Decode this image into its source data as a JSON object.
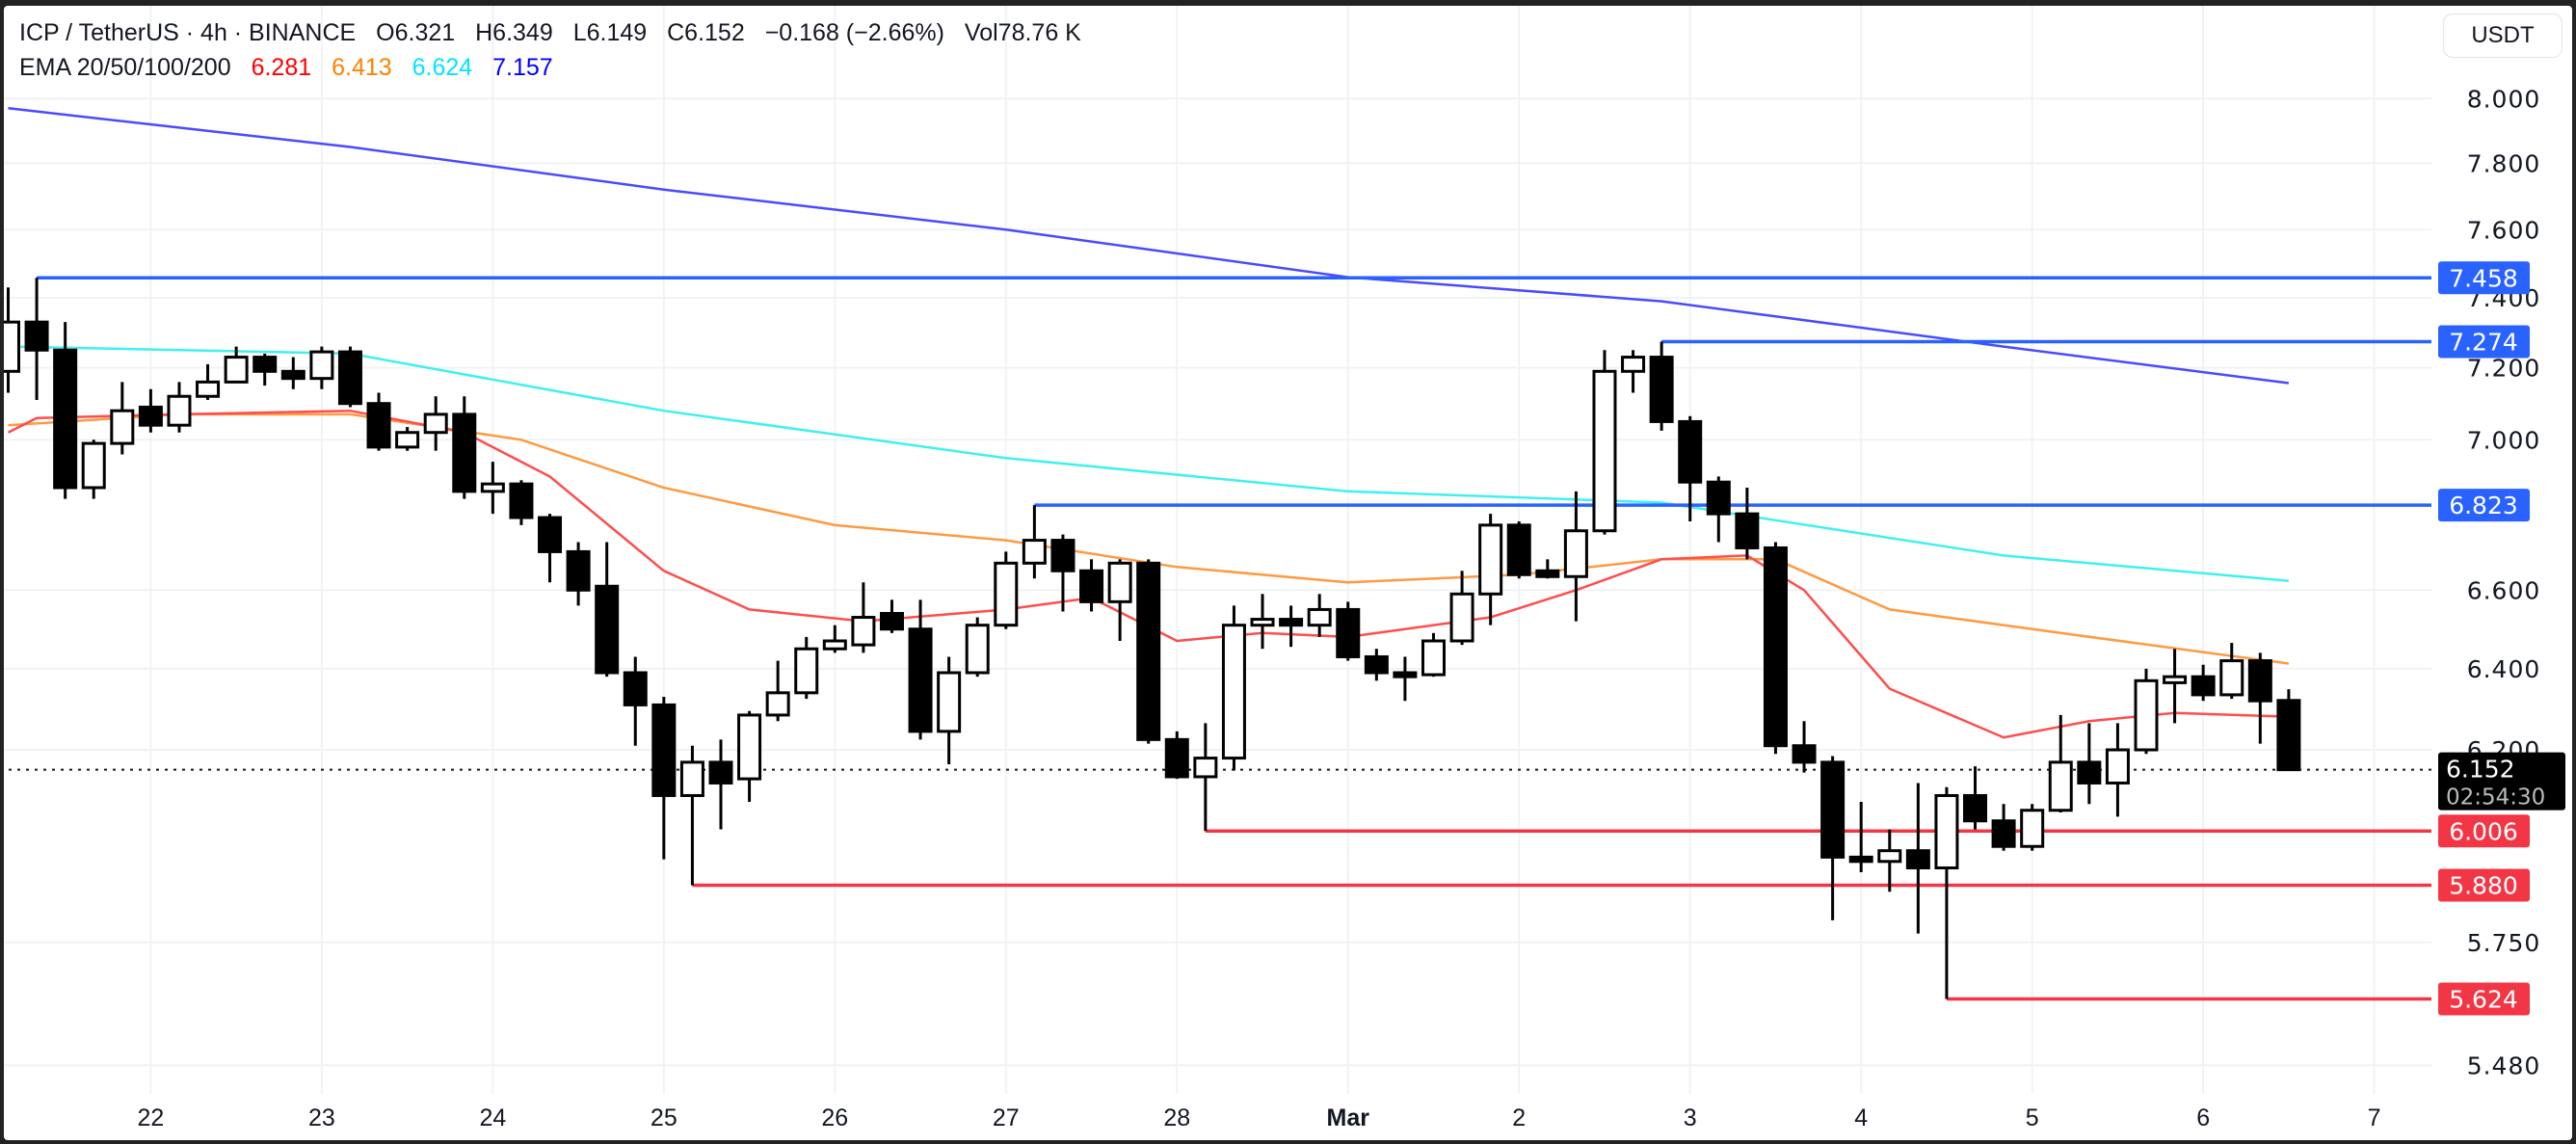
{
  "header": {
    "symbol": "ICP / TetherUS · 4h · BINANCE",
    "open": "O6.321",
    "high": "H6.349",
    "low": "L6.149",
    "close": "C6.152",
    "change": "−0.168 (−2.66%)",
    "volume": "Vol78.76 K",
    "ema_label": "EMA 20/50/100/200",
    "ema_values": [
      "6.281",
      "6.413",
      "6.624",
      "7.157"
    ]
  },
  "currency_button": "USDT",
  "colors": {
    "up": "#ffffff",
    "down": "#000000",
    "ema20": "#ff0000",
    "ema50": "#ff8000",
    "ema100": "#00ffff",
    "ema200": "#0000ff",
    "resistance": "#2962ff",
    "support": "#f23645"
  },
  "chart_data": {
    "type": "candlestick",
    "title": "ICP / TetherUS · 4h · BINANCE",
    "y_scale": "log",
    "ylim": [
      5.44,
      8.1
    ],
    "grid": true,
    "y_ticks": [
      "8.000",
      "7.800",
      "7.600",
      "7.400",
      "7.200",
      "7.000",
      "6.600",
      "6.400",
      "6.200",
      "5.750",
      "5.480"
    ],
    "x_ticks": [
      {
        "label": "22",
        "candle": 5
      },
      {
        "label": "23",
        "candle": 11
      },
      {
        "label": "24",
        "candle": 17
      },
      {
        "label": "25",
        "candle": 23
      },
      {
        "label": "26",
        "candle": 29
      },
      {
        "label": "27",
        "candle": 35
      },
      {
        "label": "28",
        "candle": 41
      },
      {
        "label": "Mar",
        "candle": 47
      },
      {
        "label": "2",
        "candle": 53
      },
      {
        "label": "3",
        "candle": 59
      },
      {
        "label": "4",
        "candle": 65
      },
      {
        "label": "5",
        "candle": 71
      },
      {
        "label": "6",
        "candle": 77
      },
      {
        "label": "7",
        "candle": 83
      }
    ],
    "ohlc": [
      [
        7.19,
        7.43,
        7.13,
        7.33
      ],
      [
        7.33,
        7.458,
        7.11,
        7.25
      ],
      [
        7.25,
        7.33,
        6.84,
        6.87
      ],
      [
        6.87,
        7.0,
        6.84,
        6.99
      ],
      [
        6.99,
        7.16,
        6.96,
        7.08
      ],
      [
        7.09,
        7.14,
        7.02,
        7.04
      ],
      [
        7.04,
        7.16,
        7.02,
        7.12
      ],
      [
        7.12,
        7.21,
        7.11,
        7.16
      ],
      [
        7.16,
        7.26,
        7.16,
        7.23
      ],
      [
        7.23,
        7.24,
        7.15,
        7.19
      ],
      [
        7.19,
        7.23,
        7.14,
        7.17
      ],
      [
        7.17,
        7.26,
        7.14,
        7.245
      ],
      [
        7.245,
        7.26,
        7.09,
        7.1
      ],
      [
        7.1,
        7.13,
        6.97,
        6.98
      ],
      [
        6.98,
        7.035,
        6.97,
        7.02
      ],
      [
        7.02,
        7.12,
        6.97,
        7.07
      ],
      [
        7.07,
        7.12,
        6.84,
        6.86
      ],
      [
        6.86,
        6.94,
        6.8,
        6.88
      ],
      [
        6.88,
        6.89,
        6.77,
        6.79
      ],
      [
        6.79,
        6.8,
        6.62,
        6.7
      ],
      [
        6.7,
        6.725,
        6.56,
        6.6
      ],
      [
        6.61,
        6.725,
        6.38,
        6.39
      ],
      [
        6.39,
        6.43,
        6.21,
        6.31
      ],
      [
        6.31,
        6.33,
        5.94,
        6.09
      ],
      [
        6.09,
        6.21,
        5.88,
        6.17
      ],
      [
        6.17,
        6.225,
        6.01,
        6.12
      ],
      [
        6.13,
        6.295,
        6.075,
        6.285
      ],
      [
        6.285,
        6.42,
        6.27,
        6.34
      ],
      [
        6.34,
        6.48,
        6.325,
        6.45
      ],
      [
        6.45,
        6.51,
        6.44,
        6.47
      ],
      [
        6.46,
        6.62,
        6.44,
        6.53
      ],
      [
        6.54,
        6.575,
        6.49,
        6.5
      ],
      [
        6.5,
        6.575,
        6.225,
        6.245
      ],
      [
        6.245,
        6.43,
        6.165,
        6.39
      ],
      [
        6.39,
        6.53,
        6.38,
        6.51
      ],
      [
        6.51,
        6.7,
        6.5,
        6.67
      ],
      [
        6.67,
        6.823,
        6.63,
        6.73
      ],
      [
        6.73,
        6.745,
        6.545,
        6.65
      ],
      [
        6.65,
        6.68,
        6.545,
        6.57
      ],
      [
        6.57,
        6.68,
        6.47,
        6.67
      ],
      [
        6.67,
        6.68,
        6.215,
        6.225
      ],
      [
        6.225,
        6.245,
        6.13,
        6.135
      ],
      [
        6.135,
        6.265,
        6.006,
        6.18
      ],
      [
        6.18,
        6.56,
        6.15,
        6.51
      ],
      [
        6.51,
        6.59,
        6.45,
        6.525
      ],
      [
        6.525,
        6.56,
        6.455,
        6.51
      ],
      [
        6.51,
        6.59,
        6.48,
        6.55
      ],
      [
        6.55,
        6.57,
        6.42,
        6.43
      ],
      [
        6.43,
        6.45,
        6.37,
        6.39
      ],
      [
        6.39,
        6.43,
        6.32,
        6.38
      ],
      [
        6.385,
        6.49,
        6.38,
        6.47
      ],
      [
        6.47,
        6.65,
        6.46,
        6.59
      ],
      [
        6.59,
        6.8,
        6.51,
        6.77
      ],
      [
        6.77,
        6.78,
        6.63,
        6.64
      ],
      [
        6.65,
        6.68,
        6.63,
        6.635
      ],
      [
        6.635,
        6.86,
        6.52,
        6.755
      ],
      [
        6.755,
        7.25,
        6.745,
        7.19
      ],
      [
        7.19,
        7.25,
        7.13,
        7.23
      ],
      [
        7.23,
        7.274,
        7.025,
        7.05
      ],
      [
        7.05,
        7.065,
        6.78,
        6.885
      ],
      [
        6.885,
        6.9,
        6.725,
        6.8
      ],
      [
        6.8,
        6.87,
        6.68,
        6.71
      ],
      [
        6.71,
        6.725,
        6.19,
        6.21
      ],
      [
        6.21,
        6.27,
        6.145,
        6.17
      ],
      [
        6.17,
        6.185,
        5.8,
        5.945
      ],
      [
        5.945,
        6.075,
        5.91,
        5.935
      ],
      [
        5.935,
        6.01,
        5.865,
        5.96
      ],
      [
        5.96,
        6.12,
        5.77,
        5.92
      ],
      [
        5.92,
        6.11,
        5.624,
        6.09
      ],
      [
        6.09,
        6.16,
        6.01,
        6.03
      ],
      [
        6.03,
        6.07,
        5.96,
        5.97
      ],
      [
        5.97,
        6.07,
        5.96,
        6.055
      ],
      [
        6.055,
        6.285,
        6.05,
        6.17
      ],
      [
        6.17,
        6.265,
        6.07,
        6.12
      ],
      [
        6.12,
        6.265,
        6.04,
        6.2
      ],
      [
        6.2,
        6.4,
        6.19,
        6.37
      ],
      [
        6.365,
        6.45,
        6.265,
        6.38
      ],
      [
        6.38,
        6.41,
        6.32,
        6.335
      ],
      [
        6.335,
        6.465,
        6.325,
        6.42
      ],
      [
        6.42,
        6.44,
        6.215,
        6.32
      ],
      [
        6.321,
        6.349,
        6.149,
        6.152
      ]
    ],
    "ema": [
      {
        "name": "EMA 200",
        "color": "#4a4aff",
        "points": [
          [
            0,
            7.97
          ],
          [
            12,
            7.85
          ],
          [
            23,
            7.72
          ],
          [
            35,
            7.6
          ],
          [
            47,
            7.46
          ],
          [
            58,
            7.39
          ],
          [
            70,
            7.26
          ],
          [
            80,
            7.157
          ]
        ]
      },
      {
        "name": "EMA 100",
        "color": "#40f0f0",
        "points": [
          [
            0,
            7.26
          ],
          [
            12,
            7.24
          ],
          [
            23,
            7.08
          ],
          [
            35,
            6.95
          ],
          [
            47,
            6.86
          ],
          [
            58,
            6.83
          ],
          [
            70,
            6.69
          ],
          [
            80,
            6.624
          ]
        ]
      },
      {
        "name": "EMA 50",
        "color": "#ff9a40",
        "points": [
          [
            0,
            7.04
          ],
          [
            6,
            7.07
          ],
          [
            12,
            7.07
          ],
          [
            18,
            7.0
          ],
          [
            23,
            6.87
          ],
          [
            29,
            6.77
          ],
          [
            35,
            6.73
          ],
          [
            41,
            6.66
          ],
          [
            47,
            6.62
          ],
          [
            53,
            6.64
          ],
          [
            58,
            6.68
          ],
          [
            62,
            6.68
          ],
          [
            66,
            6.55
          ],
          [
            72,
            6.49
          ],
          [
            80,
            6.413
          ]
        ]
      },
      {
        "name": "EMA 20",
        "color": "#ff4d4d",
        "points": [
          [
            0,
            7.02
          ],
          [
            1,
            7.06
          ],
          [
            6,
            7.07
          ],
          [
            12,
            7.08
          ],
          [
            16,
            7.02
          ],
          [
            19,
            6.9
          ],
          [
            23,
            6.65
          ],
          [
            26,
            6.55
          ],
          [
            30,
            6.52
          ],
          [
            35,
            6.55
          ],
          [
            38,
            6.58
          ],
          [
            41,
            6.47
          ],
          [
            44,
            6.49
          ],
          [
            47,
            6.48
          ],
          [
            52,
            6.53
          ],
          [
            55,
            6.6
          ],
          [
            58,
            6.68
          ],
          [
            61,
            6.69
          ],
          [
            63,
            6.6
          ],
          [
            66,
            6.35
          ],
          [
            70,
            6.23
          ],
          [
            73,
            6.27
          ],
          [
            76,
            6.29
          ],
          [
            80,
            6.281
          ]
        ]
      }
    ],
    "levels": [
      {
        "price": 7.458,
        "label": "7.458",
        "from": 1,
        "kind": "resistance"
      },
      {
        "price": 7.274,
        "label": "7.274",
        "from": 58,
        "kind": "resistance"
      },
      {
        "price": 6.823,
        "label": "6.823",
        "from": 36,
        "kind": "resistance"
      },
      {
        "price": 6.006,
        "label": "6.006",
        "from": 42,
        "kind": "support"
      },
      {
        "price": 5.88,
        "label": "5.880",
        "from": 24,
        "kind": "support"
      },
      {
        "price": 5.624,
        "label": "5.624",
        "from": 68,
        "kind": "support"
      }
    ],
    "last_price": {
      "price": 6.152,
      "label": "6.152",
      "countdown": "02:54:30"
    }
  }
}
